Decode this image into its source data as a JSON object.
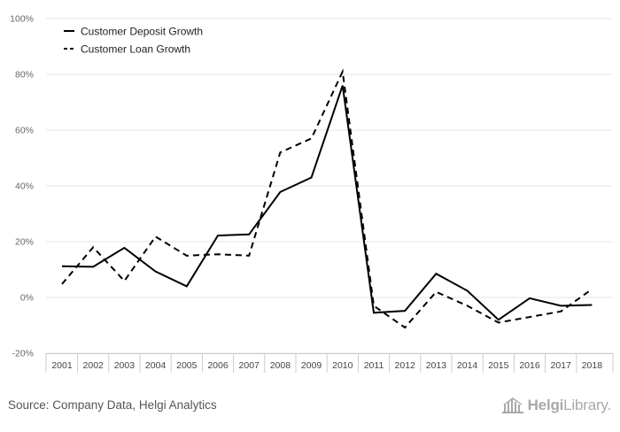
{
  "chart_data": {
    "type": "line",
    "categories": [
      "2001",
      "2002",
      "2003",
      "2004",
      "2005",
      "2006",
      "2007",
      "2008",
      "2009",
      "2010",
      "2011",
      "2012",
      "2013",
      "2014",
      "2015",
      "2016",
      "2017",
      "2018"
    ],
    "series": [
      {
        "name": "Customer Deposit Growth",
        "style": "solid",
        "color": "#000000",
        "values": [
          11.2,
          11.0,
          17.8,
          9.3,
          4.0,
          22.2,
          22.6,
          37.8,
          43.0,
          76.0,
          -5.5,
          -4.8,
          8.5,
          2.4,
          -8.0,
          -0.3,
          -3.0,
          -2.7
        ]
      },
      {
        "name": "Customer Loan Growth",
        "style": "dashed",
        "color": "#000000",
        "values": [
          4.8,
          18.0,
          5.9,
          21.8,
          15.0,
          15.5,
          15.0,
          52.0,
          57.0,
          81.0,
          -3.0,
          -10.8,
          2.0,
          -3.0,
          -9.0,
          -7.0,
          -5.0,
          3.0
        ]
      }
    ],
    "yticks": [
      "100%",
      "80%",
      "60%",
      "40%",
      "20%",
      "0%",
      "-20%"
    ],
    "ylim": [
      -20,
      100
    ],
    "grid": true,
    "legend_position": "top-left"
  },
  "footer": {
    "source": "Source: Company Data, Helgi Analytics",
    "brand_bold": "Helgi",
    "brand_rest": "Library."
  }
}
